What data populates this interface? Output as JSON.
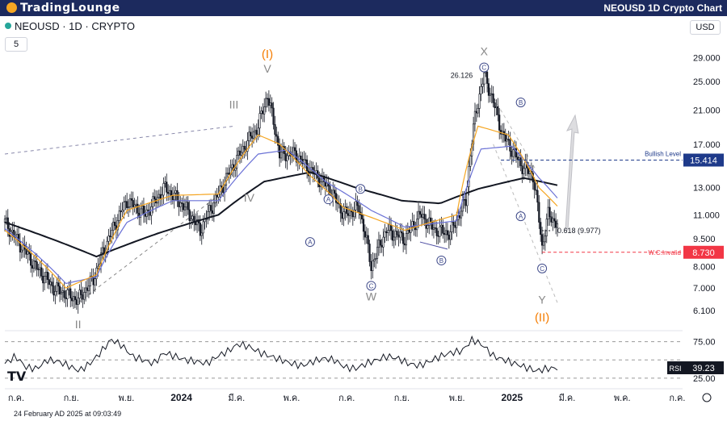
{
  "header": {
    "logo_text": "TradingLounge",
    "chart_title": "NEOUSD 1D Crypto Chart"
  },
  "symbol_label": "NEOUSD · 1D · CRYPTO",
  "interval_box": "5",
  "currency": "USD",
  "timestamp": "24 February AD 2025 at 09:03:49",
  "tv_logo": "TV",
  "chart_data": {
    "type": "candlestick",
    "price_axis": {
      "scale": "log",
      "ticks": [
        29.0,
        25.0,
        21.0,
        17.0,
        13.0,
        11.0,
        9.5,
        8.0,
        7.0,
        6.1
      ],
      "tick_labels": [
        "29.000",
        "25.000",
        "21.000",
        "17.000",
        "13.000",
        "11.000",
        "9.500",
        "8.000",
        "7.000",
        "6.100"
      ]
    },
    "time_axis": {
      "labels": [
        "ก.ค.",
        "ก.ย.",
        "พ.ย.",
        "2024",
        "มี.ค.",
        "พ.ค.",
        "ก.ค.",
        "ก.ย.",
        "พ.ย.",
        "2025",
        "มี.ค.",
        "พ.ค.",
        "ก.ค."
      ]
    },
    "price_path": [
      [
        0,
        10.5
      ],
      [
        8,
        9.4
      ],
      [
        20,
        8.0
      ],
      [
        32,
        7.0
      ],
      [
        48,
        6.5
      ],
      [
        58,
        7.4
      ],
      [
        68,
        9.5
      ],
      [
        80,
        12.0
      ],
      [
        92,
        11.0
      ],
      [
        105,
        13.0
      ],
      [
        118,
        11.5
      ],
      [
        128,
        10.0
      ],
      [
        140,
        12.5
      ],
      [
        150,
        15.0
      ],
      [
        158,
        17.0
      ],
      [
        166,
        19.0
      ],
      [
        172,
        23.0
      ],
      [
        180,
        16.0
      ],
      [
        190,
        16.0
      ],
      [
        200,
        14.5
      ],
      [
        212,
        13.0
      ],
      [
        222,
        11.0
      ],
      [
        232,
        11.5
      ],
      [
        240,
        8.0
      ],
      [
        250,
        10.0
      ],
      [
        262,
        9.5
      ],
      [
        272,
        11.0
      ],
      [
        282,
        10.0
      ],
      [
        292,
        9.8
      ],
      [
        302,
        12.0
      ],
      [
        308,
        20.0
      ],
      [
        314,
        26.1
      ],
      [
        326,
        18.0
      ],
      [
        338,
        15.0
      ],
      [
        346,
        14.0
      ],
      [
        352,
        9.0
      ],
      [
        356,
        11.0
      ],
      [
        362,
        10.4
      ]
    ],
    "ema_short": [
      [
        0,
        10.0
      ],
      [
        40,
        7.0
      ],
      [
        60,
        7.6
      ],
      [
        80,
        11.3
      ],
      [
        110,
        12.4
      ],
      [
        140,
        12.5
      ],
      [
        166,
        18.0
      ],
      [
        180,
        17.0
      ],
      [
        200,
        14.0
      ],
      [
        222,
        11.5
      ],
      [
        262,
        10.0
      ],
      [
        296,
        11.0
      ],
      [
        310,
        19.0
      ],
      [
        330,
        18.0
      ],
      [
        350,
        13.0
      ],
      [
        362,
        11.6
      ]
    ],
    "ema_mid": [
      [
        0,
        10.1
      ],
      [
        40,
        7.2
      ],
      [
        60,
        7.5
      ],
      [
        80,
        10.5
      ],
      [
        110,
        12.0
      ],
      [
        140,
        12.0
      ],
      [
        166,
        16.0
      ],
      [
        185,
        16.4
      ],
      [
        210,
        13.5
      ],
      [
        240,
        11.3
      ],
      [
        262,
        10.2
      ],
      [
        296,
        10.6
      ],
      [
        312,
        16.5
      ],
      [
        332,
        16.8
      ],
      [
        350,
        13.8
      ],
      [
        362,
        12.2
      ]
    ],
    "ma_long": [
      [
        0,
        10.5
      ],
      [
        30,
        9.5
      ],
      [
        60,
        8.5
      ],
      [
        100,
        9.8
      ],
      [
        140,
        11.0
      ],
      [
        170,
        13.5
      ],
      [
        200,
        14.3
      ],
      [
        230,
        13.0
      ],
      [
        260,
        12.0
      ],
      [
        285,
        11.8
      ],
      [
        310,
        12.9
      ],
      [
        340,
        13.8
      ],
      [
        362,
        13.2
      ]
    ],
    "rsi": {
      "label": "RSI",
      "value": "39.23",
      "ticks": [
        "75.00",
        "25.00"
      ],
      "series": [
        45,
        55,
        40,
        38,
        50,
        48,
        42,
        35,
        45,
        60,
        78,
        70,
        55,
        50,
        45,
        60,
        55,
        50,
        48,
        45,
        55,
        62,
        72,
        68,
        60,
        55,
        50,
        45,
        42,
        48,
        52,
        50,
        40,
        38,
        45,
        50,
        55,
        52,
        45,
        42,
        48,
        55,
        60,
        62,
        78,
        70,
        55,
        50,
        45,
        40,
        35,
        38,
        39
      ]
    },
    "annotations": [
      {
        "text": "(I)",
        "color": "#f57c00"
      },
      {
        "text": "V",
        "color": "#888888"
      },
      {
        "text": "III",
        "color": "#888888"
      },
      {
        "text": "IV",
        "color": "#888888"
      },
      {
        "text": "II",
        "color": "#888888"
      },
      {
        "text": "X",
        "color": "#888888"
      },
      {
        "text": "W",
        "color": "#888888"
      },
      {
        "text": "Y",
        "color": "#888888"
      },
      {
        "text": "(II)",
        "color": "#f57c00"
      }
    ],
    "circled_labels": [
      "C",
      "B",
      "A",
      "A",
      "C",
      "B",
      "B",
      "A",
      "C"
    ],
    "levels": {
      "high": "26.126",
      "bullish_text": "Bullish Level",
      "bullish_value": "15.414",
      "fib_text": "0.618 (9.977)",
      "invalid_text": "W.C.Invalid",
      "invalid_value": "8.730"
    },
    "colors": {
      "up": "#131722",
      "down": "#131722",
      "ema_short": "#f5a623",
      "ema_mid": "#6b72d6",
      "ma_long": "#131722",
      "bullish": "#1e3a8a",
      "invalid": "#f23645"
    }
  }
}
